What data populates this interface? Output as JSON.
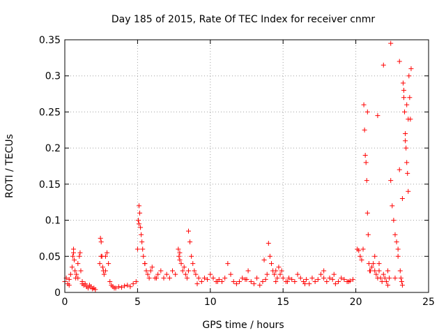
{
  "chart_data": {
    "type": "scatter",
    "title": "Day 185 of 2015, Rate Of TEC Index for receiver cnmr",
    "xlabel": "GPS time / hours",
    "ylabel": "ROTI / TECUs",
    "xlim": [
      0,
      25
    ],
    "ylim": [
      0,
      0.35
    ],
    "xticks": [
      0,
      5,
      10,
      15,
      20,
      25
    ],
    "xtick_labels": [
      "0",
      "5",
      "10",
      "15",
      "20",
      "25"
    ],
    "yticks": [
      0,
      0.05,
      0.1,
      0.15,
      0.2,
      0.25,
      0.3,
      0.35
    ],
    "ytick_labels": [
      "0",
      "0.05",
      "0.1",
      "0.15",
      "0.2",
      "0.25",
      "0.3",
      "0.35"
    ],
    "grid": true,
    "marker": "+",
    "color": "#ff0000",
    "series": [
      {
        "name": "ROTI",
        "x": [
          0.0,
          0.1,
          0.2,
          0.3,
          0.4,
          0.5,
          0.55,
          0.6,
          0.65,
          0.7,
          0.75,
          0.8,
          0.9,
          1.0,
          1.05,
          1.1,
          1.2,
          1.3,
          1.4,
          1.5,
          1.6,
          1.7,
          1.8,
          1.9,
          2.0,
          2.1,
          2.4,
          2.45,
          2.5,
          2.55,
          2.6,
          2.65,
          2.7,
          2.8,
          2.9,
          3.0,
          3.1,
          3.2,
          3.3,
          3.5,
          3.7,
          3.9,
          4.1,
          4.3,
          4.5,
          4.7,
          4.9,
          5.0,
          5.05,
          5.1,
          5.15,
          5.2,
          5.25,
          5.3,
          5.35,
          5.4,
          5.5,
          5.6,
          5.7,
          5.8,
          5.9,
          6.0,
          6.2,
          6.4,
          6.6,
          6.8,
          7.0,
          7.2,
          7.4,
          7.6,
          7.8,
          7.85,
          7.9,
          8.0,
          8.1,
          8.2,
          8.3,
          8.4,
          8.5,
          8.6,
          8.7,
          8.8,
          8.9,
          9.0,
          9.2,
          9.4,
          9.6,
          9.8,
          10.0,
          10.2,
          10.4,
          10.6,
          10.8,
          11.0,
          11.2,
          11.4,
          11.6,
          11.8,
          12.0,
          12.2,
          12.4,
          12.6,
          12.8,
          13.0,
          13.2,
          13.4,
          13.6,
          13.8,
          13.9,
          14.0,
          14.1,
          14.2,
          14.3,
          14.4,
          14.5,
          14.6,
          14.7,
          14.8,
          14.9,
          15.0,
          15.2,
          15.4,
          15.6,
          15.8,
          16.0,
          16.2,
          16.4,
          16.6,
          16.8,
          17.0,
          17.2,
          17.4,
          17.6,
          17.8,
          18.0,
          18.2,
          18.4,
          18.6,
          18.8,
          19.0,
          19.2,
          19.4,
          19.6,
          19.8,
          20.1,
          20.2,
          20.3,
          20.4,
          20.5,
          20.55,
          20.6,
          20.65,
          20.7,
          20.75,
          20.8,
          20.85,
          20.9,
          20.95,
          21.0,
          21.1,
          21.2,
          21.3,
          21.4,
          21.5,
          21.6,
          21.7,
          21.8,
          21.9,
          22.0,
          22.1,
          22.2,
          22.3,
          22.4,
          22.5,
          22.6,
          22.7,
          22.8,
          22.9,
          23.0,
          23.05,
          23.1,
          23.15,
          23.2,
          23.25,
          23.3,
          23.35,
          23.4,
          23.45,
          23.5,
          23.55,
          23.6,
          23.65,
          23.7,
          23.75,
          23.8,
          0.3,
          0.6,
          0.9,
          1.2,
          2.5,
          2.8,
          3.4,
          5.1,
          5.5,
          6.3,
          7.9,
          8.5,
          9.1,
          10.5,
          12.5,
          13.7,
          14.5,
          15.3,
          16.5,
          17.8,
          18.5,
          19.5,
          20.8,
          21.3,
          21.6,
          22.2,
          22.7,
          23.0,
          23.3,
          23.5,
          23.6,
          23.4,
          23.2,
          22.9,
          22.4,
          21.9,
          21.5
        ],
        "y": [
          0.015,
          0.02,
          0.012,
          0.018,
          0.025,
          0.035,
          0.05,
          0.06,
          0.045,
          0.03,
          0.02,
          0.025,
          0.04,
          0.05,
          0.055,
          0.03,
          0.015,
          0.01,
          0.012,
          0.008,
          0.006,
          0.01,
          0.008,
          0.005,
          0.006,
          0.004,
          0.04,
          0.075,
          0.07,
          0.05,
          0.035,
          0.03,
          0.025,
          0.05,
          0.055,
          0.04,
          0.015,
          0.01,
          0.008,
          0.006,
          0.008,
          0.007,
          0.009,
          0.01,
          0.008,
          0.012,
          0.015,
          0.06,
          0.1,
          0.12,
          0.11,
          0.09,
          0.08,
          0.07,
          0.06,
          0.05,
          0.04,
          0.03,
          0.025,
          0.02,
          0.03,
          0.035,
          0.02,
          0.025,
          0.03,
          0.02,
          0.025,
          0.02,
          0.03,
          0.025,
          0.06,
          0.05,
          0.045,
          0.04,
          0.03,
          0.035,
          0.025,
          0.02,
          0.085,
          0.07,
          0.05,
          0.04,
          0.03,
          0.025,
          0.02,
          0.015,
          0.02,
          0.018,
          0.025,
          0.02,
          0.015,
          0.018,
          0.015,
          0.02,
          0.04,
          0.025,
          0.015,
          0.012,
          0.015,
          0.02,
          0.018,
          0.03,
          0.015,
          0.012,
          0.02,
          0.01,
          0.015,
          0.018,
          0.025,
          0.068,
          0.05,
          0.04,
          0.03,
          0.025,
          0.015,
          0.02,
          0.035,
          0.025,
          0.03,
          0.02,
          0.015,
          0.02,
          0.018,
          0.015,
          0.025,
          0.02,
          0.015,
          0.018,
          0.012,
          0.02,
          0.015,
          0.018,
          0.025,
          0.03,
          0.015,
          0.02,
          0.018,
          0.012,
          0.015,
          0.02,
          0.018,
          0.015,
          0.016,
          0.018,
          0.06,
          0.058,
          0.05,
          0.045,
          0.06,
          0.26,
          0.225,
          0.19,
          0.18,
          0.155,
          0.11,
          0.08,
          0.04,
          0.03,
          0.03,
          0.035,
          0.04,
          0.03,
          0.025,
          0.02,
          0.03,
          0.02,
          0.015,
          0.025,
          0.02,
          0.015,
          0.01,
          0.02,
          0.345,
          0.12,
          0.1,
          0.08,
          0.07,
          0.05,
          0.32,
          0.03,
          0.02,
          0.015,
          0.01,
          0.29,
          0.27,
          0.25,
          0.22,
          0.2,
          0.18,
          0.165,
          0.14,
          0.3,
          0.27,
          0.24,
          0.31,
          0.01,
          0.055,
          0.02,
          0.012,
          0.05,
          0.03,
          0.006,
          0.095,
          0.04,
          0.02,
          0.055,
          0.03,
          0.012,
          0.015,
          0.018,
          0.045,
          0.03,
          0.015,
          0.012,
          0.02,
          0.025,
          0.015,
          0.25,
          0.05,
          0.04,
          0.03,
          0.02,
          0.17,
          0.28,
          0.26,
          0.24,
          0.21,
          0.13,
          0.06,
          0.155,
          0.315,
          0.245
        ]
      }
    ]
  }
}
